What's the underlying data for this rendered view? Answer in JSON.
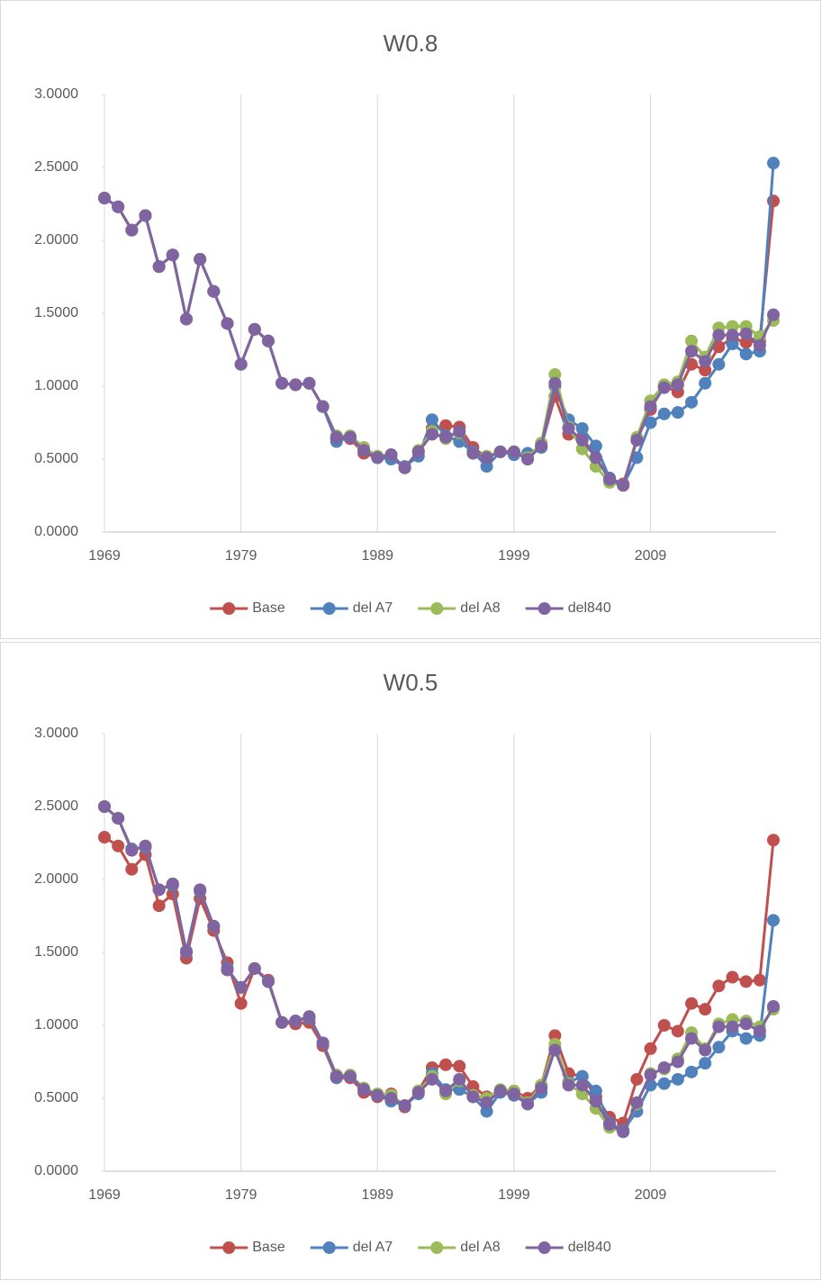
{
  "chart_data": [
    {
      "type": "line",
      "title": "W0.8",
      "x": [
        1969,
        1970,
        1971,
        1972,
        1973,
        1974,
        1975,
        1976,
        1977,
        1978,
        1979,
        1980,
        1981,
        1982,
        1983,
        1984,
        1985,
        1986,
        1987,
        1988,
        1989,
        1990,
        1991,
        1992,
        1993,
        1994,
        1995,
        1996,
        1997,
        1998,
        1999,
        2000,
        2001,
        2002,
        2003,
        2004,
        2005,
        2006,
        2007,
        2008,
        2009,
        2010,
        2011,
        2012,
        2013,
        2014,
        2015,
        2016,
        2017,
        2018
      ],
      "xlim": [
        1969,
        2018
      ],
      "xticks": [
        1969,
        1979,
        1989,
        1999,
        2009
      ],
      "ylim": [
        0,
        3
      ],
      "yticks": [
        {
          "value": 0,
          "label": "0.0000"
        },
        {
          "value": 0.5,
          "label": "0.5000"
        },
        {
          "value": 1,
          "label": "1.0000"
        },
        {
          "value": 1.5,
          "label": "1.5000"
        },
        {
          "value": 2,
          "label": "2.0000"
        },
        {
          "value": 2.5,
          "label": "2.5000"
        },
        {
          "value": 3,
          "label": "3.0000"
        }
      ],
      "grid": true,
      "legend": "bottom",
      "series": [
        {
          "name": "Base",
          "color": "#c0504d",
          "values": [
            2.29,
            2.23,
            2.07,
            2.17,
            1.82,
            1.9,
            1.46,
            1.87,
            1.65,
            1.43,
            1.15,
            1.39,
            1.31,
            1.02,
            1.01,
            1.02,
            0.86,
            0.64,
            0.64,
            0.54,
            0.51,
            0.53,
            0.44,
            0.55,
            0.71,
            0.73,
            0.72,
            0.58,
            0.51,
            0.55,
            0.55,
            0.5,
            0.59,
            0.93,
            0.67,
            0.65,
            0.51,
            0.37,
            0.33,
            0.63,
            0.84,
            1.0,
            0.96,
            1.15,
            1.11,
            1.27,
            1.33,
            1.3,
            1.31,
            2.27
          ]
        },
        {
          "name": "del A7",
          "color": "#4f81bd",
          "values": [
            2.29,
            2.23,
            2.07,
            2.17,
            1.82,
            1.9,
            1.46,
            1.87,
            1.65,
            1.43,
            1.15,
            1.39,
            1.31,
            1.02,
            1.01,
            1.02,
            0.86,
            0.62,
            0.65,
            0.56,
            0.51,
            0.5,
            0.45,
            0.52,
            0.77,
            0.66,
            0.62,
            0.55,
            0.45,
            0.55,
            0.53,
            0.54,
            0.58,
            1.0,
            0.77,
            0.71,
            0.59,
            0.37,
            0.32,
            0.51,
            0.75,
            0.81,
            0.82,
            0.89,
            1.02,
            1.15,
            1.29,
            1.22,
            1.24,
            2.53
          ]
        },
        {
          "name": "del A8",
          "color": "#9bbb59",
          "values": [
            2.29,
            2.23,
            2.07,
            2.17,
            1.82,
            1.9,
            1.46,
            1.87,
            1.65,
            1.43,
            1.15,
            1.39,
            1.31,
            1.02,
            1.01,
            1.02,
            0.86,
            0.66,
            0.66,
            0.58,
            0.52,
            0.53,
            0.44,
            0.56,
            0.69,
            0.64,
            0.68,
            0.54,
            0.52,
            0.55,
            0.55,
            0.51,
            0.61,
            1.08,
            0.72,
            0.57,
            0.45,
            0.34,
            0.32,
            0.65,
            0.9,
            1.01,
            1.03,
            1.31,
            1.2,
            1.4,
            1.41,
            1.41,
            1.34,
            1.45
          ]
        },
        {
          "name": "del840",
          "color": "#8064a2",
          "values": [
            2.29,
            2.23,
            2.07,
            2.17,
            1.82,
            1.9,
            1.46,
            1.87,
            1.65,
            1.43,
            1.15,
            1.39,
            1.31,
            1.02,
            1.01,
            1.02,
            0.86,
            0.65,
            0.65,
            0.56,
            0.51,
            0.53,
            0.44,
            0.55,
            0.67,
            0.65,
            0.69,
            0.54,
            0.51,
            0.55,
            0.55,
            0.5,
            0.59,
            1.02,
            0.71,
            0.63,
            0.51,
            0.36,
            0.32,
            0.63,
            0.86,
            0.99,
            1.01,
            1.24,
            1.17,
            1.35,
            1.35,
            1.36,
            1.28,
            1.49
          ]
        }
      ]
    },
    {
      "type": "line",
      "title": "W0.5",
      "x": [
        1969,
        1970,
        1971,
        1972,
        1973,
        1974,
        1975,
        1976,
        1977,
        1978,
        1979,
        1980,
        1981,
        1982,
        1983,
        1984,
        1985,
        1986,
        1987,
        1988,
        1989,
        1990,
        1991,
        1992,
        1993,
        1994,
        1995,
        1996,
        1997,
        1998,
        1999,
        2000,
        2001,
        2002,
        2003,
        2004,
        2005,
        2006,
        2007,
        2008,
        2009,
        2010,
        2011,
        2012,
        2013,
        2014,
        2015,
        2016,
        2017,
        2018
      ],
      "xlim": [
        1969,
        2018
      ],
      "xticks": [
        1969,
        1979,
        1989,
        1999,
        2009
      ],
      "ylim": [
        0,
        3
      ],
      "yticks": [
        {
          "value": 0,
          "label": "0.0000"
        },
        {
          "value": 0.5,
          "label": "0.5000"
        },
        {
          "value": 1,
          "label": "1.0000"
        },
        {
          "value": 1.5,
          "label": "1.5000"
        },
        {
          "value": 2,
          "label": "2.0000"
        },
        {
          "value": 2.5,
          "label": "2.5000"
        },
        {
          "value": 3,
          "label": "3.0000"
        }
      ],
      "grid": true,
      "legend": "bottom",
      "series": [
        {
          "name": "Base",
          "color": "#c0504d",
          "values": [
            2.29,
            2.23,
            2.07,
            2.17,
            1.82,
            1.9,
            1.46,
            1.87,
            1.65,
            1.43,
            1.15,
            1.39,
            1.31,
            1.02,
            1.01,
            1.02,
            0.86,
            0.64,
            0.64,
            0.54,
            0.51,
            0.53,
            0.44,
            0.55,
            0.71,
            0.73,
            0.72,
            0.58,
            0.51,
            0.55,
            0.55,
            0.5,
            0.59,
            0.93,
            0.67,
            0.65,
            0.51,
            0.37,
            0.33,
            0.63,
            0.84,
            1.0,
            0.96,
            1.15,
            1.11,
            1.27,
            1.33,
            1.3,
            1.31,
            2.27
          ]
        },
        {
          "name": "del A7",
          "color": "#4f81bd",
          "values": [
            2.5,
            2.42,
            2.21,
            2.22,
            1.93,
            1.96,
            1.51,
            1.92,
            1.68,
            1.39,
            1.26,
            1.39,
            1.3,
            1.02,
            1.03,
            1.05,
            0.88,
            0.64,
            0.65,
            0.56,
            0.52,
            0.48,
            0.45,
            0.53,
            0.67,
            0.56,
            0.56,
            0.51,
            0.41,
            0.54,
            0.52,
            0.46,
            0.54,
            0.84,
            0.61,
            0.65,
            0.55,
            0.33,
            0.28,
            0.41,
            0.59,
            0.6,
            0.63,
            0.68,
            0.74,
            0.85,
            0.96,
            0.91,
            0.93,
            1.72
          ]
        },
        {
          "name": "del A8",
          "color": "#9bbb59",
          "values": [
            2.5,
            2.42,
            2.2,
            2.23,
            1.93,
            1.97,
            1.5,
            1.93,
            1.68,
            1.38,
            1.26,
            1.39,
            1.3,
            1.02,
            1.03,
            1.06,
            0.88,
            0.66,
            0.66,
            0.57,
            0.53,
            0.52,
            0.45,
            0.55,
            0.65,
            0.53,
            0.62,
            0.52,
            0.5,
            0.56,
            0.55,
            0.47,
            0.59,
            0.87,
            0.6,
            0.53,
            0.43,
            0.3,
            0.27,
            0.46,
            0.67,
            0.7,
            0.77,
            0.95,
            0.84,
            1.01,
            1.04,
            1.03,
            0.99,
            1.11
          ]
        },
        {
          "name": "del840",
          "color": "#8064a2",
          "values": [
            2.5,
            2.42,
            2.2,
            2.23,
            1.93,
            1.97,
            1.5,
            1.93,
            1.68,
            1.38,
            1.26,
            1.39,
            1.3,
            1.02,
            1.03,
            1.06,
            0.88,
            0.65,
            0.65,
            0.56,
            0.52,
            0.5,
            0.45,
            0.54,
            0.63,
            0.55,
            0.63,
            0.51,
            0.47,
            0.55,
            0.53,
            0.46,
            0.57,
            0.83,
            0.59,
            0.59,
            0.48,
            0.32,
            0.27,
            0.47,
            0.66,
            0.71,
            0.75,
            0.91,
            0.83,
            0.99,
            0.99,
            1.01,
            0.96,
            1.13
          ]
        }
      ]
    }
  ]
}
